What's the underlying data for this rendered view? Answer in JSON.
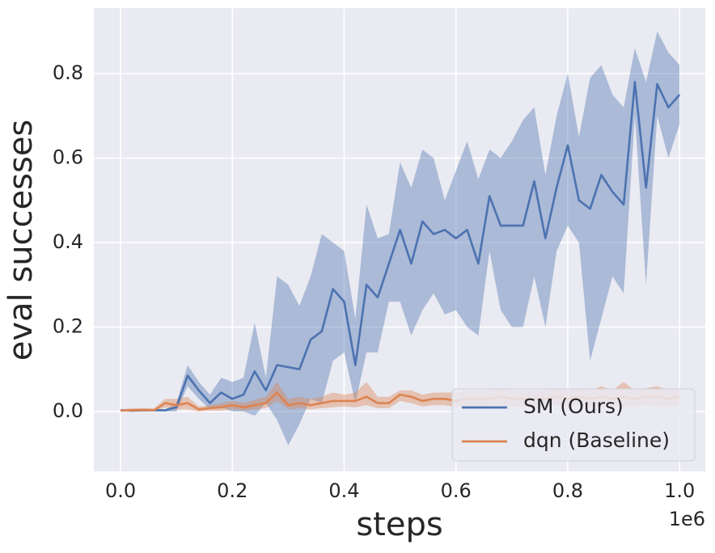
{
  "chart_data": {
    "type": "line",
    "x_label": "steps",
    "y_label": "eval successes",
    "x_offset_label": "1e6",
    "x": [
      0,
      0.02,
      0.04,
      0.06,
      0.08,
      0.1,
      0.12,
      0.14,
      0.16,
      0.18,
      0.2,
      0.22,
      0.24,
      0.26,
      0.28,
      0.3,
      0.32,
      0.34,
      0.36,
      0.38,
      0.4,
      0.42,
      0.44,
      0.46,
      0.48,
      0.5,
      0.52,
      0.54,
      0.56,
      0.58,
      0.6,
      0.62,
      0.64,
      0.66,
      0.68,
      0.7,
      0.72,
      0.74,
      0.76,
      0.78,
      0.8,
      0.82,
      0.84,
      0.86,
      0.88,
      0.9,
      0.92,
      0.94,
      0.96,
      0.98,
      1.0
    ],
    "series": [
      {
        "name": "SM (Ours)",
        "color": "#4c72b0",
        "values": [
          0.003,
          0.002,
          0.003,
          0.003,
          0.003,
          0.01,
          0.085,
          0.05,
          0.02,
          0.045,
          0.03,
          0.04,
          0.095,
          0.05,
          0.11,
          0.105,
          0.1,
          0.17,
          0.19,
          0.29,
          0.26,
          0.11,
          0.3,
          0.27,
          0.35,
          0.43,
          0.35,
          0.45,
          0.42,
          0.43,
          0.41,
          0.43,
          0.35,
          0.51,
          0.44,
          0.44,
          0.44,
          0.545,
          0.41,
          0.53,
          0.63,
          0.5,
          0.48,
          0.56,
          0.52,
          0.49,
          0.78,
          0.53,
          0.775,
          0.72,
          0.75
        ],
        "upper": [
          0.005,
          0.005,
          0.005,
          0.005,
          0.005,
          0.02,
          0.11,
          0.07,
          0.04,
          0.08,
          0.07,
          0.08,
          0.21,
          0.08,
          0.32,
          0.3,
          0.25,
          0.32,
          0.42,
          0.4,
          0.38,
          0.22,
          0.49,
          0.41,
          0.42,
          0.59,
          0.53,
          0.62,
          0.6,
          0.5,
          0.57,
          0.64,
          0.55,
          0.62,
          0.6,
          0.64,
          0.69,
          0.72,
          0.56,
          0.7,
          0.8,
          0.65,
          0.79,
          0.82,
          0.75,
          0.72,
          0.86,
          0.78,
          0.9,
          0.85,
          0.82
        ],
        "lower": [
          0,
          0,
          0,
          0,
          0,
          0,
          0.06,
          0.03,
          0.005,
          0.01,
          0,
          0,
          -0.01,
          0.02,
          -0.02,
          -0.08,
          -0.03,
          0.03,
          0.02,
          0.12,
          0.14,
          0.02,
          0.14,
          0.14,
          0.26,
          0.26,
          0.18,
          0.24,
          0.28,
          0.23,
          0.24,
          0.2,
          0.18,
          0.38,
          0.24,
          0.2,
          0.2,
          0.32,
          0.2,
          0.38,
          0.44,
          0.4,
          0.12,
          0.22,
          0.32,
          0.28,
          0.7,
          0.3,
          0.7,
          0.6,
          0.68
        ]
      },
      {
        "name": "dqn (Baseline)",
        "color": "#dd8452",
        "values": [
          0.002,
          0.003,
          0.004,
          0.003,
          0.02,
          0.015,
          0.02,
          0.005,
          0.008,
          0.01,
          0.015,
          0.01,
          0.015,
          0.02,
          0.045,
          0.015,
          0.02,
          0.015,
          0.02,
          0.025,
          0.025,
          0.025,
          0.035,
          0.02,
          0.02,
          0.04,
          0.035,
          0.025,
          0.03,
          0.03,
          0.025,
          0.03,
          0.03,
          0.03,
          0.035,
          0.03,
          0.03,
          0.03,
          0.03,
          0.035,
          0.03,
          0.035,
          0.03,
          0.035,
          0.03,
          0.035,
          0.03,
          0.035,
          0.035,
          0.03,
          0.035
        ],
        "upper": [
          0.005,
          0.008,
          0.008,
          0.008,
          0.03,
          0.03,
          0.035,
          0.012,
          0.015,
          0.02,
          0.025,
          0.02,
          0.028,
          0.035,
          0.07,
          0.03,
          0.035,
          0.03,
          0.035,
          0.045,
          0.04,
          0.045,
          0.07,
          0.035,
          0.035,
          0.05,
          0.05,
          0.04,
          0.045,
          0.045,
          0.045,
          0.05,
          0.05,
          0.05,
          0.055,
          0.05,
          0.05,
          0.05,
          0.05,
          0.055,
          0.05,
          0.055,
          0.05,
          0.06,
          0.05,
          0.07,
          0.05,
          0.055,
          0.06,
          0.05,
          0.055
        ],
        "lower": [
          0,
          0,
          0,
          0,
          0.01,
          0.005,
          0.005,
          0,
          0.002,
          0.002,
          0.005,
          0.002,
          0.005,
          0.008,
          0.025,
          0.005,
          0.008,
          0.005,
          0.008,
          0.01,
          0.012,
          0.01,
          0.015,
          0.008,
          0.008,
          0.025,
          0.02,
          0.012,
          0.015,
          0.015,
          0.01,
          0.012,
          0.012,
          0.012,
          0.015,
          0.012,
          0.012,
          0.012,
          0.012,
          0.015,
          0.012,
          0.015,
          0.012,
          0.012,
          0.012,
          0.01,
          0.012,
          0.015,
          0.012,
          0.012,
          0.015
        ]
      }
    ],
    "xlim": [
      -0.0478,
      1.046
    ],
    "ylim": [
      -0.1416,
      0.955
    ],
    "xticks": [
      {
        "value": 0,
        "label": "0.0"
      },
      0.2,
      0.4,
      0.6,
      0.8,
      {
        "value": 1,
        "label": "1.0"
      }
    ],
    "yticks": [
      {
        "value": 0,
        "label": "0.0"
      },
      0.2,
      0.4,
      0.6,
      0.8
    ],
    "grid": true,
    "legend": "lower right"
  }
}
